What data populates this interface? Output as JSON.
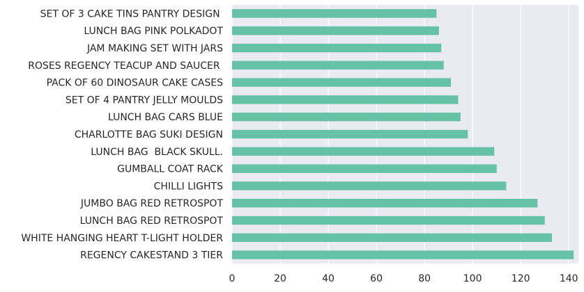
{
  "chart_data": {
    "type": "bar",
    "orientation": "horizontal",
    "categories": [
      "REGENCY CAKESTAND 3 TIER",
      "WHITE HANGING HEART T-LIGHT HOLDER",
      "LUNCH BAG RED RETROSPOT",
      "JUMBO BAG RED RETROSPOT",
      "CHILLI LIGHTS",
      "GUMBALL COAT RACK",
      "LUNCH BAG  BLACK SKULL.",
      "CHARLOTTE BAG SUKI DESIGN",
      "LUNCH BAG CARS BLUE",
      "SET OF 4 PANTRY JELLY MOULDS",
      "PACK OF 60 DINOSAUR CAKE CASES",
      "ROSES REGENCY TEACUP AND SAUCER ",
      "JAM MAKING SET WITH JARS",
      "LUNCH BAG PINK POLKADOT",
      "SET OF 3 CAKE TINS PANTRY DESIGN "
    ],
    "values": [
      142,
      133,
      130,
      127,
      114,
      110,
      109,
      98,
      95,
      94,
      91,
      88,
      87,
      86,
      85
    ],
    "xlim": [
      0,
      144
    ],
    "xticks": [
      0,
      20,
      40,
      60,
      80,
      100,
      120,
      140
    ],
    "title": "",
    "xlabel": "",
    "ylabel": "",
    "grid": true,
    "colors": {
      "bar": "#66c2a5",
      "plot_background": "#eaeaf2",
      "grid": "#ffffff",
      "text": "#262626"
    }
  }
}
